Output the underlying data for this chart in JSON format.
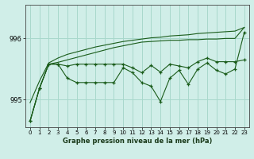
{
  "background_color": "#d0eee8",
  "grid_color": "#a8d8cc",
  "line_color": "#1a5c1a",
  "title": "Graphe pression niveau de la mer (hPa)",
  "xlim": [
    -0.5,
    23.5
  ],
  "ylim": [
    994.55,
    996.55
  ],
  "yticks": [
    995,
    996
  ],
  "xticks": [
    0,
    1,
    2,
    3,
    4,
    5,
    6,
    7,
    8,
    9,
    10,
    11,
    12,
    13,
    14,
    15,
    16,
    17,
    18,
    19,
    20,
    21,
    22,
    23
  ],
  "hours": [
    0,
    1,
    2,
    3,
    4,
    5,
    6,
    7,
    8,
    9,
    10,
    11,
    12,
    13,
    14,
    15,
    16,
    17,
    18,
    19,
    20,
    21,
    22,
    23
  ],
  "line_jagged1": [
    994.65,
    995.18,
    995.58,
    995.58,
    995.35,
    995.28,
    995.28,
    995.28,
    995.28,
    995.28,
    995.52,
    995.44,
    995.28,
    995.22,
    994.97,
    995.35,
    995.48,
    995.25,
    995.5,
    995.6,
    995.48,
    995.42,
    995.5,
    996.1
  ],
  "line_jagged2": [
    994.65,
    995.18,
    995.58,
    995.58,
    995.55,
    995.58,
    995.58,
    995.58,
    995.58,
    995.58,
    995.58,
    995.52,
    995.44,
    995.56,
    995.45,
    995.58,
    995.55,
    995.52,
    995.62,
    995.68,
    995.62,
    995.62,
    995.62,
    995.65
  ],
  "smooth1": [
    994.65,
    995.18,
    995.58,
    995.61,
    995.65,
    995.69,
    995.73,
    995.77,
    995.81,
    995.85,
    995.88,
    995.91,
    995.94,
    995.95,
    995.96,
    995.97,
    995.97,
    995.98,
    995.98,
    995.99,
    995.99,
    996.0,
    996.0,
    996.18
  ],
  "smooth2": [
    994.95,
    995.3,
    995.6,
    995.68,
    995.74,
    995.78,
    995.82,
    995.86,
    995.89,
    995.92,
    995.95,
    995.97,
    995.99,
    996.01,
    996.02,
    996.04,
    996.05,
    996.06,
    996.08,
    996.09,
    996.1,
    996.11,
    996.12,
    996.18
  ]
}
